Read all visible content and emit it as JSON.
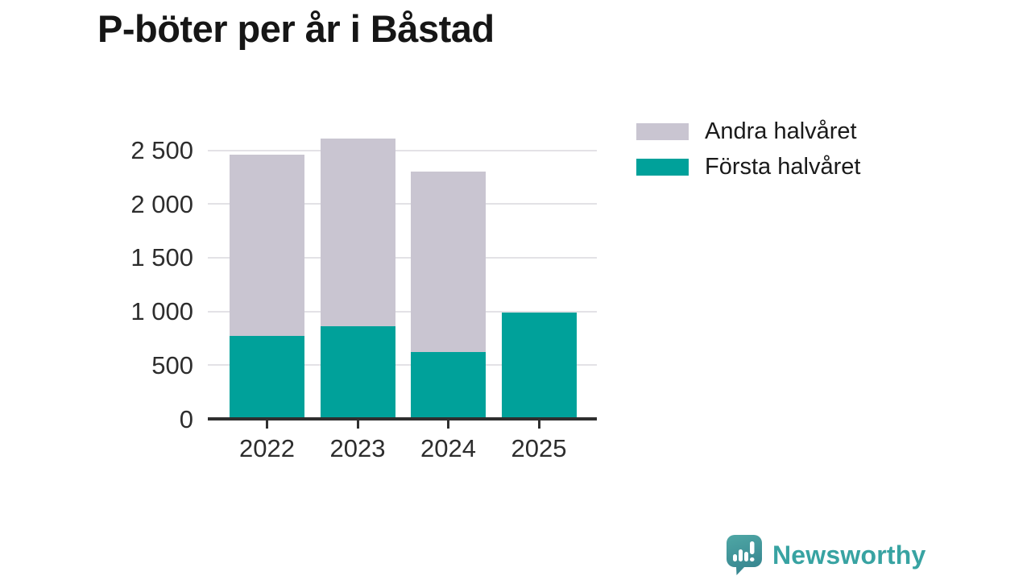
{
  "title": "P-böter per år i Båstad",
  "footer": {
    "brand": "Newsworthy",
    "brand_color": "#38a3a2"
  },
  "chart_data": {
    "type": "bar",
    "stacked": true,
    "title": "P-böter per år i Båstad",
    "xlabel": "",
    "ylabel": "",
    "categories": [
      "2022",
      "2023",
      "2024",
      "2025"
    ],
    "series": [
      {
        "name": "Andra halvåret",
        "color": "#c9c5d1",
        "values": [
          1690,
          1750,
          1680,
          0
        ]
      },
      {
        "name": "Första halvåret",
        "color": "#00a19a",
        "values": [
          770,
          860,
          620,
          990
        ]
      }
    ],
    "stacked_totals": [
      2460,
      2610,
      2300,
      990
    ],
    "ylim": [
      0,
      2500
    ],
    "yticks": [
      {
        "value": 0,
        "label": "0"
      },
      {
        "value": 500,
        "label": "500"
      },
      {
        "value": 1000,
        "label": "1 000"
      },
      {
        "value": 1500,
        "label": "1 500"
      },
      {
        "value": 2000,
        "label": "2 000"
      },
      {
        "value": 2500,
        "label": "2 500"
      }
    ],
    "legend_position": "top-right",
    "grid": "horizontal"
  }
}
